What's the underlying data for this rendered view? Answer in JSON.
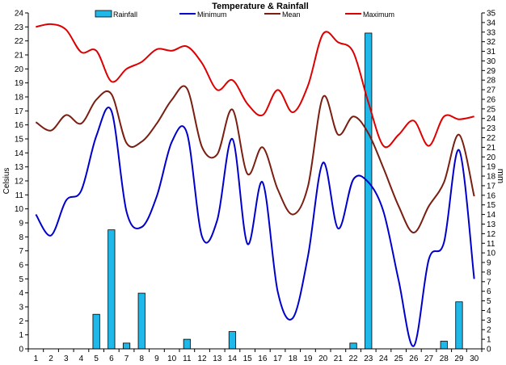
{
  "chart_data": {
    "type": "line",
    "title": "Temperature & Rainfall",
    "ylabel_left": "Celsius",
    "ylabel_right": "mm",
    "legend_position": "top",
    "grid": false,
    "categories": [
      "1",
      "2",
      "3",
      "4",
      "5",
      "6",
      "7",
      "8",
      "9",
      "10",
      "11",
      "12",
      "13",
      "14",
      "15",
      "16",
      "17",
      "18",
      "19",
      "20",
      "21",
      "22",
      "23",
      "24",
      "25",
      "26",
      "27",
      "28",
      "29",
      "30"
    ],
    "ylim_left": [
      0,
      24
    ],
    "ylim_right": [
      0,
      35
    ],
    "yticks_left": [
      "0",
      "1",
      "2",
      "3",
      "4",
      "5",
      "6",
      "7",
      "8",
      "9",
      "10",
      "11",
      "12",
      "13",
      "14",
      "15",
      "16",
      "17",
      "18",
      "19",
      "20",
      "21",
      "22",
      "23",
      "24"
    ],
    "yticks_right": [
      "0",
      "1",
      "2",
      "3",
      "4",
      "5",
      "6",
      "7",
      "8",
      "9",
      "10",
      "11",
      "12",
      "13",
      "14",
      "15",
      "16",
      "17",
      "18",
      "19",
      "20",
      "21",
      "22",
      "23",
      "24",
      "25",
      "26",
      "27",
      "28",
      "29",
      "30",
      "31",
      "32",
      "33",
      "34",
      "35"
    ],
    "series": [
      {
        "name": "Rainfall",
        "type": "bar",
        "axis": "right",
        "color": "#1fb8e8",
        "values": [
          0,
          0,
          0,
          0,
          3.6,
          12.4,
          0.6,
          5.8,
          0,
          0,
          1.0,
          0,
          0,
          1.8,
          0,
          0,
          0,
          0,
          0,
          0,
          0,
          0.6,
          32.9,
          0,
          0,
          0,
          0,
          0.8,
          4.9,
          0
        ]
      },
      {
        "name": "Minimum",
        "type": "line",
        "axis": "left",
        "color": "#0000cc",
        "values": [
          9.6,
          8.1,
          10.6,
          11.3,
          15.2,
          17.0,
          9.8,
          8.7,
          10.9,
          14.8,
          15.4,
          8.0,
          9.2,
          15.0,
          7.5,
          11.9,
          4.1,
          2.2,
          6.6,
          13.3,
          8.6,
          12.1,
          11.9,
          9.8,
          4.9,
          0.2,
          6.4,
          7.6,
          14.2,
          5.0
        ]
      },
      {
        "name": "Mean",
        "type": "line",
        "axis": "left",
        "color": "#7a1e12",
        "values": [
          16.2,
          15.6,
          16.7,
          16.1,
          17.8,
          18.2,
          14.7,
          14.8,
          16.1,
          17.8,
          18.6,
          14.4,
          13.9,
          17.1,
          12.5,
          14.4,
          11.4,
          9.6,
          11.6,
          18.0,
          15.3,
          16.6,
          15.4,
          12.9,
          10.2,
          8.3,
          10.2,
          11.9,
          15.3,
          10.9
        ]
      },
      {
        "name": "Maximum",
        "type": "line",
        "axis": "left",
        "color": "#dd0000",
        "values": [
          23.0,
          23.2,
          22.8,
          21.2,
          21.3,
          19.1,
          20.0,
          20.5,
          21.4,
          21.3,
          21.6,
          20.4,
          18.5,
          19.2,
          17.5,
          16.7,
          18.5,
          16.9,
          18.8,
          22.5,
          21.9,
          21.2,
          17.6,
          14.5,
          15.3,
          16.3,
          14.5,
          16.6,
          16.4,
          16.6
        ]
      }
    ]
  }
}
